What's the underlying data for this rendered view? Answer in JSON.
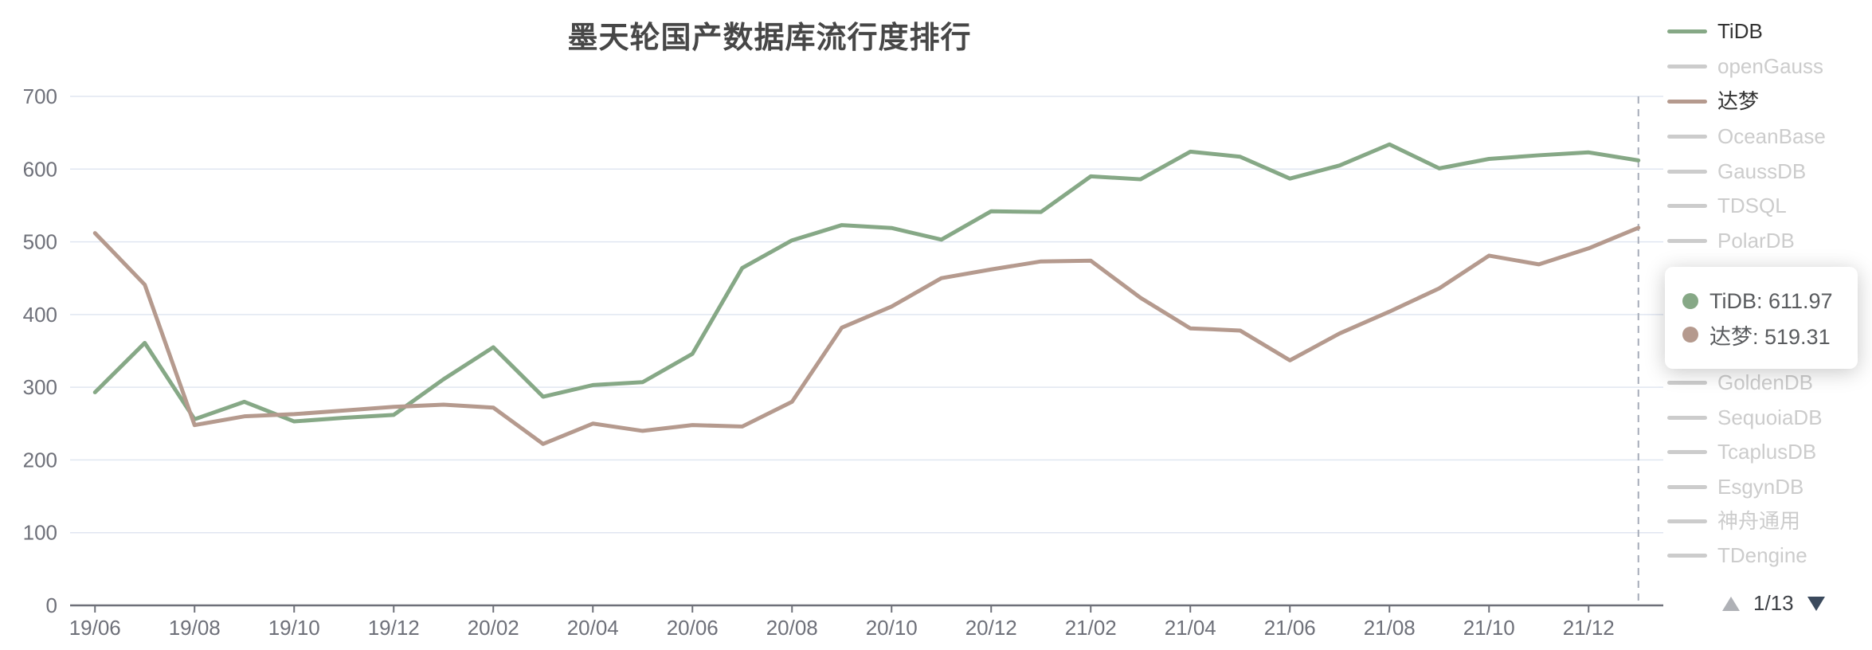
{
  "title": "墨天轮国产数据库流行度排行",
  "colors": {
    "tidb": "#86a886",
    "dameng": "#b59a8e",
    "inactive_legend": "#cccccc",
    "active_legend_text": "#333333",
    "gridline": "#e0e6f1",
    "axis_line": "#6e7079",
    "axis_label": "#6e7079",
    "axis_pointer_dashed": "#a6acb8",
    "title_text": "#474747",
    "tooltip_text": "#595b5e",
    "pager_prev": "#afb1b6",
    "pager_next": "#3b4a5d"
  },
  "legend": {
    "items": [
      {
        "label": "TiDB",
        "active": true,
        "color": "#86a886"
      },
      {
        "label": "openGauss",
        "active": false,
        "color": "#cccccc"
      },
      {
        "label": "达梦",
        "active": true,
        "color": "#b59a8e"
      },
      {
        "label": "OceanBase",
        "active": false,
        "color": "#cccccc"
      },
      {
        "label": "GaussDB",
        "active": false,
        "color": "#cccccc"
      },
      {
        "label": "TDSQL",
        "active": false,
        "color": "#cccccc"
      },
      {
        "label": "PolarDB",
        "active": false,
        "color": "#cccccc"
      },
      {
        "label": "GoldenDB",
        "active": false,
        "color": "#cccccc"
      },
      {
        "label": "SequoiaDB",
        "active": false,
        "color": "#cccccc"
      },
      {
        "label": "TcaplusDB",
        "active": false,
        "color": "#cccccc"
      },
      {
        "label": "EsgynDB",
        "active": false,
        "color": "#cccccc"
      },
      {
        "label": "神舟通用",
        "active": false,
        "color": "#cccccc"
      },
      {
        "label": "TDengine",
        "active": false,
        "color": "#cccccc"
      }
    ],
    "pager": {
      "current": "1/13",
      "prev_icon": "triangle-up",
      "next_icon": "triangle-down"
    }
  },
  "tooltip": {
    "rows": [
      {
        "text": "TiDB: 611.97",
        "color": "#86a886"
      },
      {
        "text": "达梦: 519.31",
        "color": "#b59a8e"
      }
    ]
  },
  "chart_data": {
    "type": "line",
    "title": "墨天轮国产数据库流行度排行",
    "x": [
      "19/06",
      "19/07",
      "19/08",
      "19/09",
      "19/10",
      "19/11",
      "19/12",
      "20/01",
      "20/02",
      "20/03",
      "20/04",
      "20/05",
      "20/06",
      "20/07",
      "20/08",
      "20/09",
      "20/10",
      "20/11",
      "20/12",
      "21/01",
      "21/02",
      "21/03",
      "21/04",
      "21/05",
      "21/06",
      "21/07",
      "21/08",
      "21/09",
      "21/10",
      "21/11",
      "21/12",
      "22/01"
    ],
    "x_tick_labels": [
      "19/06",
      "19/08",
      "19/10",
      "19/12",
      "20/02",
      "20/04",
      "20/06",
      "20/08",
      "20/10",
      "20/12",
      "21/02",
      "21/04",
      "21/06",
      "21/08",
      "21/10",
      "21/12"
    ],
    "series": [
      {
        "name": "TiDB",
        "color": "#86a886",
        "values": [
          293,
          361,
          256,
          280,
          253,
          258,
          262,
          311,
          355,
          287,
          303,
          307,
          346,
          464,
          502,
          523,
          519,
          503,
          542,
          541,
          590,
          586,
          624,
          617,
          587,
          605,
          634,
          601,
          614,
          619,
          623,
          611.97
        ]
      },
      {
        "name": "达梦",
        "color": "#b59a8e",
        "values": [
          512,
          441,
          248,
          260,
          263,
          268,
          273,
          276,
          272,
          222,
          250,
          240,
          248,
          246,
          280,
          382,
          411,
          450,
          462,
          473,
          474,
          423,
          381,
          378,
          337,
          374,
          404,
          436,
          481,
          469,
          491,
          519.31
        ]
      }
    ],
    "ylabel": "",
    "xlabel": "",
    "ylim": [
      0,
      700
    ],
    "ytick_interval": 100,
    "grid": "horizontal-only",
    "legend_position": "right",
    "axis_pointer_x": "22/01"
  }
}
